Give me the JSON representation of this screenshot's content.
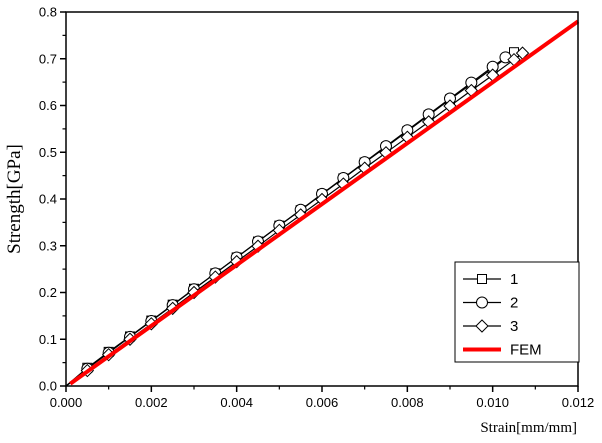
{
  "chart_data": {
    "type": "line",
    "title": "",
    "xlabel": "Strain[mm/mm]",
    "ylabel": "Strength[GPa]",
    "xlim": [
      0.0,
      0.012
    ],
    "ylim": [
      0.0,
      0.8
    ],
    "xticks": [
      "0.000",
      "0.002",
      "0.004",
      "0.006",
      "0.008",
      "0.010",
      "0.012"
    ],
    "yticks": [
      "0.0",
      "0.1",
      "0.2",
      "0.3",
      "0.4",
      "0.5",
      "0.6",
      "0.7",
      "0.8"
    ],
    "grid": false,
    "legend_position": "bottom-right",
    "series": [
      {
        "name": "1",
        "marker": "square",
        "color": "#000000",
        "x": [
          0.0005,
          0.001,
          0.0015,
          0.002,
          0.0025,
          0.003,
          0.0035,
          0.004,
          0.0045,
          0.005,
          0.0055,
          0.006,
          0.0065,
          0.007,
          0.0075,
          0.008,
          0.0085,
          0.009,
          0.0095,
          0.01,
          0.0105
        ],
        "y": [
          0.039,
          0.073,
          0.106,
          0.14,
          0.174,
          0.208,
          0.241,
          0.275,
          0.309,
          0.343,
          0.376,
          0.41,
          0.444,
          0.478,
          0.511,
          0.545,
          0.579,
          0.613,
          0.646,
          0.68,
          0.714
        ]
      },
      {
        "name": "2",
        "marker": "circle",
        "color": "#000000",
        "x": [
          0.0005,
          0.001,
          0.0015,
          0.002,
          0.0025,
          0.003,
          0.0035,
          0.004,
          0.0045,
          0.005,
          0.0055,
          0.006,
          0.0065,
          0.007,
          0.0075,
          0.008,
          0.0085,
          0.009,
          0.0095,
          0.01,
          0.0103
        ],
        "y": [
          0.037,
          0.071,
          0.105,
          0.139,
          0.173,
          0.207,
          0.241,
          0.275,
          0.309,
          0.343,
          0.377,
          0.411,
          0.445,
          0.479,
          0.513,
          0.547,
          0.581,
          0.615,
          0.649,
          0.683,
          0.703
        ]
      },
      {
        "name": "3",
        "marker": "diamond",
        "color": "#000000",
        "x": [
          0.0005,
          0.001,
          0.0015,
          0.002,
          0.0025,
          0.003,
          0.0035,
          0.004,
          0.0045,
          0.005,
          0.0055,
          0.006,
          0.0065,
          0.007,
          0.0075,
          0.008,
          0.0085,
          0.009,
          0.0095,
          0.01,
          0.0105,
          0.0107
        ],
        "y": [
          0.033,
          0.067,
          0.1,
          0.133,
          0.166,
          0.2,
          0.233,
          0.266,
          0.299,
          0.333,
          0.366,
          0.399,
          0.432,
          0.466,
          0.499,
          0.532,
          0.565,
          0.599,
          0.632,
          0.665,
          0.698,
          0.712
        ]
      },
      {
        "name": "FEM",
        "marker": "none",
        "color": "#ff0000",
        "x": [
          0.0001,
          0.012
        ],
        "y": [
          0.005,
          0.78
        ]
      }
    ]
  }
}
